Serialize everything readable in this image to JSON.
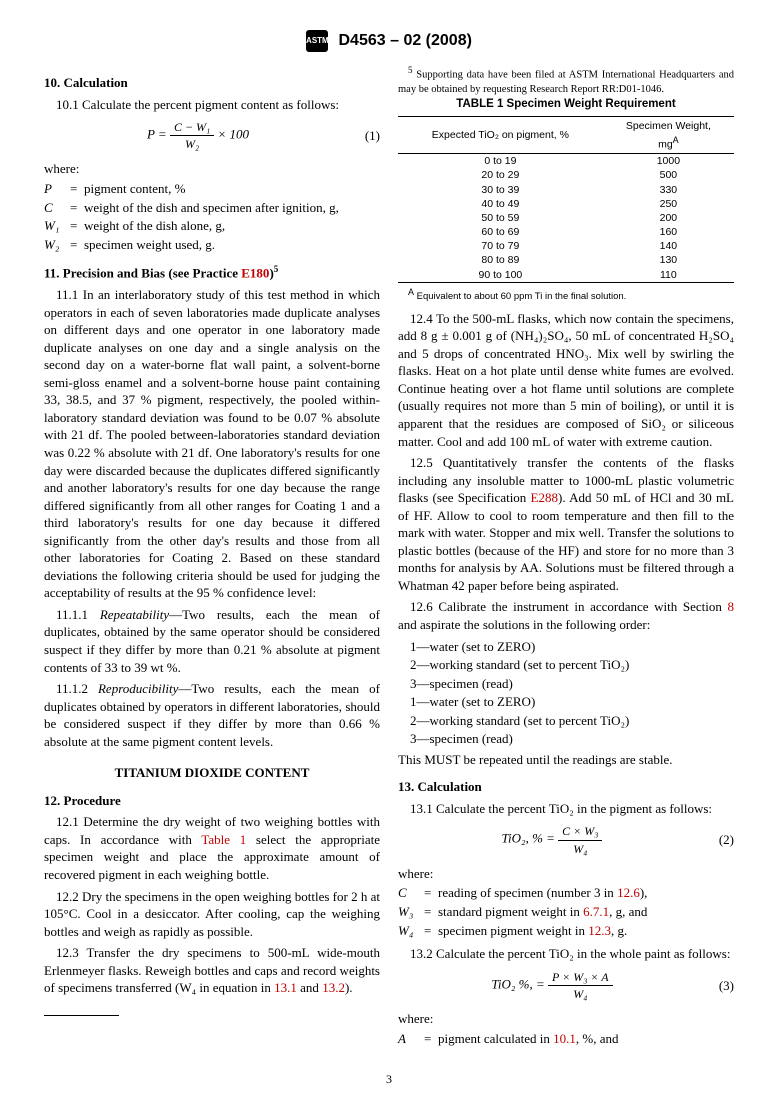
{
  "header": {
    "designation": "D4563 – 02 (2008)",
    "logo_text": "ASTM"
  },
  "s10": {
    "title": "10.  Calculation",
    "p1": "10.1 Calculate the percent pigment content as follows:",
    "eq_lhs": "P =",
    "eq_num_top": "C − W₁",
    "eq_den": "W₂",
    "eq_tail": " × 100",
    "eq_no": "(1)",
    "where": "where:",
    "defs": [
      {
        "sym": "P",
        "desc": "pigment content, %"
      },
      {
        "sym": "C",
        "desc": "weight of the dish and specimen after ignition, g,"
      },
      {
        "sym": "W₁",
        "desc": "weight of the dish alone, g,"
      },
      {
        "sym": "W₂",
        "desc": "specimen weight used, g."
      }
    ]
  },
  "s11": {
    "title_a": "11.  Precision and Bias (see Practice ",
    "title_link": "E180",
    "title_b": ")",
    "sup": "5",
    "p1": "11.1 In an interlaboratory study of this test method in which operators in each of seven laboratories made duplicate analyses on different days and one operator in one laboratory made duplicate analyses on one day and a single analysis on the second day on a water-borne flat wall paint, a solvent-borne semi-gloss enamel and a solvent-borne house paint containing 33, 38.5, and 37 % pigment, respectively, the pooled within-laboratory standard deviation was found to be 0.07 % absolute with 21 df. The pooled between-laboratories standard deviation was 0.22 % absolute with 21 df. One laboratory's results for one day were discarded because the duplicates differed significantly and another laboratory's results for one day because the range differed significantly from all other ranges for Coating 1 and a third laboratory's results for one day because it differed significantly from the other day's results and those from all other laboratories for Coating 2. Based on these standard deviations the following criteria should be used for judging the acceptability of results at the 95 % confidence level:",
    "p2_label": "11.1.1 ",
    "p2_term": "Repeatability",
    "p2_body": "—Two results, each the mean of duplicates, obtained by the same operator should be considered suspect if they differ by more than 0.21 % absolute at pigment contents of 33 to 39 wt %.",
    "p3_label": "11.1.2 ",
    "p3_term": "Reproducibility",
    "p3_body": "—Two results, each the mean of duplicates obtained by operators in different laboratories, should be considered suspect if they differ by more than 0.66 % absolute at the same pigment content levels."
  },
  "subtitle": "TITANIUM DIOXIDE CONTENT",
  "s12": {
    "title": "12.  Procedure",
    "p1a": "12.1 Determine the dry weight of two weighing bottles with caps. In accordance with ",
    "p1link": "Table 1",
    "p1b": " select the appropriate specimen weight and place the approximate amount of recovered pigment in each weighing bottle.",
    "p2": "12.2 Dry the specimens in the open weighing bottles for 2 h at 105°C. Cool in a desiccator. After cooling, cap the weighing bottles and weigh as rapidly as possible.",
    "p3a": "12.3 Transfer the dry specimens to 500-mL wide-mouth Erlenmeyer flasks. Reweigh bottles and caps and record weights of specimens transferred (W₄ in equation in ",
    "p3l1": "13.1",
    "p3mid": " and ",
    "p3l2": "13.2",
    "p3b": ").",
    "p4": "12.4 To the 500-mL flasks, which now contain the specimens, add 8 g ± 0.001 g of (NH₄)₂SO₄, 50 mL of concentrated H₂SO₄ and 5 drops of concentrated HNO₃. Mix well by swirling the flasks. Heat on a hot plate until dense white fumes are evolved. Continue heating over a hot flame until solutions are complete (usually requires not more than 5 min of boiling), or until it is apparent that the residues are composed of SiO₂ or siliceous matter. Cool and add 100 mL of water with extreme caution.",
    "p5a": "12.5 Quantitatively transfer the contents of the flasks including any insoluble matter to 1000-mL plastic volumetric flasks (see Specification ",
    "p5link": "E288",
    "p5b": "). Add 50 mL of HCl and 30 mL of HF. Allow to cool to room temperature and then fill to the mark with water. Stopper and mix well. Transfer the solutions to plastic bottles (because of the HF) and store for no more than 3 months for analysis by AA. Solutions must be filtered through a Whatman 42 paper before being aspirated.",
    "p6a": "12.6 Calibrate the instrument in accordance with Section ",
    "p6link": "8",
    "p6b": " and aspirate the solutions in the following order:",
    "order": [
      "1—water (set to ZERO)",
      "2—working standard (set to percent TiO₂)",
      "3—specimen (read)",
      "1—water (set to ZERO)",
      "2—working standard (set to percent TiO₂)",
      "3—specimen (read)"
    ],
    "p6c": "This MUST be repeated until the readings are stable."
  },
  "s13": {
    "title": "13.  Calculation",
    "p1": "13.1 Calculate the percent TiO₂ in the pigment as follows:",
    "eq1_lhs": "TiO₂, % = ",
    "eq1_num": "C × W₃",
    "eq1_den": "W₄",
    "eq1_no": "(2)",
    "where": "where:",
    "defs": [
      {
        "sym": "C",
        "desc_a": "reading of specimen (number 3 in ",
        "link": "12.6",
        "desc_b": "),"
      },
      {
        "sym": "W₃",
        "desc_a": "standard pigment weight in ",
        "link": "6.7.1",
        "desc_b": ", g, and"
      },
      {
        "sym": "W₄",
        "desc_a": "specimen pigment weight in ",
        "link": "12.3",
        "desc_b": ", g."
      }
    ],
    "p2": "13.2 Calculate the percent TiO₂ in the whole paint as follows:",
    "eq2_lhs": "TiO₂ %, = ",
    "eq2_num": "P × W₃ × A",
    "eq2_den": "W₄",
    "eq2_no": "(3)",
    "where2": "where:",
    "def_A_sym": "A",
    "def_A_a": "pigment calculated in ",
    "def_A_link": "10.1",
    "def_A_b": ", %, and"
  },
  "table1": {
    "title": "TABLE 1 Specimen Weight Requirement",
    "col1": "Expected TiO₂ on pigment, %",
    "col2_a": "Specimen Weight,",
    "col2_b": "mg",
    "col2_sup": "A",
    "rows": [
      [
        "0 to 19",
        "1000"
      ],
      [
        "20 to 29",
        "500"
      ],
      [
        "30 to 39",
        "330"
      ],
      [
        "40 to 49",
        "250"
      ],
      [
        "50 to 59",
        "200"
      ],
      [
        "60 to 69",
        "160"
      ],
      [
        "70 to 79",
        "140"
      ],
      [
        "80 to 89",
        "130"
      ],
      [
        "90 to 100",
        "110"
      ]
    ],
    "foot_sup": "A",
    "foot": " Equivalent to about 60 ppm Ti in the final solution."
  },
  "footnote": {
    "sup": "5",
    "text": " Supporting data have been filed at ASTM International Headquarters and may be obtained by requesting Research Report RR:D01-1046."
  },
  "pageno": "3"
}
